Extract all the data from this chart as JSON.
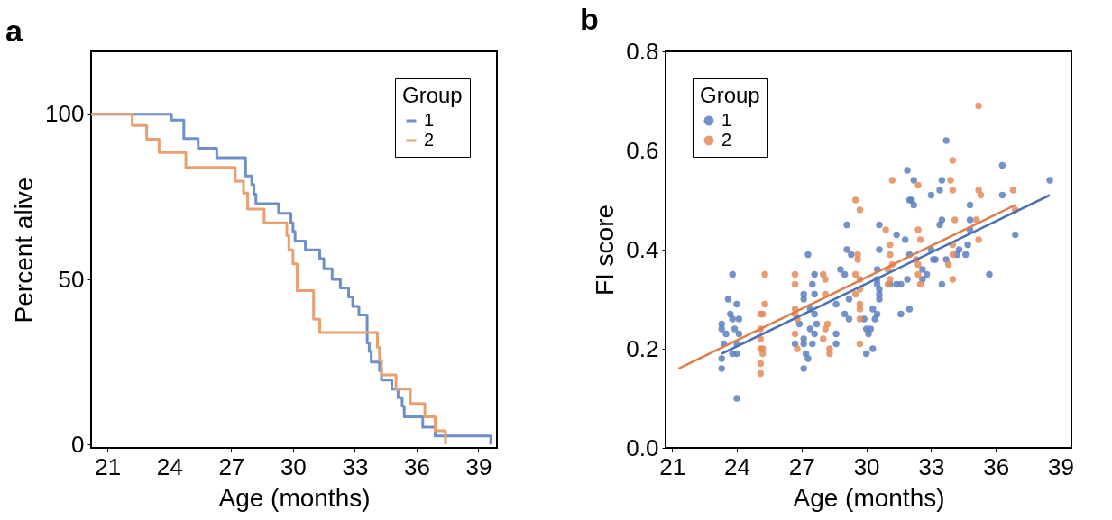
{
  "chart_data": [
    {
      "type": "step",
      "title": "a",
      "xlabel": "Age (months)",
      "ylabel": "Percent alive",
      "legend_title": "Group",
      "legend": "top right",
      "xlim": [
        20.2,
        39.9
      ],
      "xticks": [
        21,
        24,
        27,
        30,
        33,
        36,
        39
      ],
      "ylim": [
        -1,
        119
      ],
      "yticks": [
        0,
        50,
        100
      ],
      "series": [
        {
          "name": "1",
          "color": "#6e8fc9",
          "x": [
            20.2,
            24.1,
            24.7,
            25.4,
            26.3,
            27.7,
            28.0,
            28.1,
            28.2,
            29.3,
            29.9,
            30.0,
            30.1,
            30.6,
            31.3,
            31.5,
            31.9,
            32.3,
            32.7,
            32.9,
            33.2,
            33.6,
            33.7,
            33.8,
            34.2,
            34.3,
            34.8,
            35.1,
            35.3,
            35.4,
            36.3,
            36.9,
            39.6
          ],
          "values": [
            100,
            98.2,
            92.6,
            89.7,
            86.8,
            81.3,
            78.7,
            75.8,
            72.9,
            70.0,
            67.1,
            64.5,
            61.6,
            58.9,
            56.3,
            53.2,
            50.0,
            47.4,
            44.7,
            41.8,
            39.2,
            30.8,
            28.2,
            25.0,
            22.4,
            19.5,
            16.8,
            14.2,
            11.6,
            8.4,
            5.3,
            2.6,
            0
          ]
        },
        {
          "name": "2",
          "color": "#e9a070",
          "x": [
            20.2,
            22.2,
            22.9,
            23.5,
            24.8,
            27.2,
            27.6,
            27.8,
            28.6,
            29.7,
            29.8,
            30.0,
            30.2,
            31.0,
            31.3,
            34.1,
            34.2,
            34.3,
            35.0,
            35.7,
            36.4,
            36.9,
            37.4
          ],
          "values": [
            100,
            96.6,
            92.4,
            88.4,
            83.9,
            79.7,
            76.1,
            71.3,
            67.1,
            63.2,
            58.9,
            54.7,
            46.6,
            37.9,
            33.9,
            29.5,
            25.5,
            21.1,
            16.8,
            12.4,
            8.4,
            4.2,
            0
          ]
        }
      ]
    },
    {
      "type": "scatter",
      "title": "b",
      "xlabel": "Age (months)",
      "ylabel": "FI score",
      "legend_title": "Group",
      "legend": "top left",
      "xlim": [
        20.7,
        39.5
      ],
      "xticks": [
        21,
        24,
        27,
        30,
        33,
        36,
        39
      ],
      "ylim": [
        0,
        0.8
      ],
      "yticks": [
        {
          "value": 0,
          "label": "0.0"
        },
        0.2,
        0.4,
        0.6,
        0.8
      ],
      "series": [
        {
          "name": "1",
          "color": "#5b7fc0",
          "type": "scatter",
          "marker": "circle",
          "x": [
            23.8,
            23.6,
            24.0,
            23.7,
            23.3,
            23.3,
            23.5,
            23.8,
            24.1,
            23.9,
            24.1,
            23.4,
            24.0,
            23.8,
            24.0,
            23.3,
            23.3,
            24.0,
            27.3,
            27.6,
            27.5,
            27.1,
            27.1,
            27.6,
            27.4,
            27.6,
            26.9,
            27.7,
            27.4,
            27.6,
            26.7,
            27.1,
            27.1,
            27.5,
            27.2,
            27.3,
            27.1,
            28.6,
            28.8,
            29.1,
            29.1,
            29.3,
            29.0,
            29.2,
            29.0,
            29.2,
            28.6,
            28.6,
            33.7,
            31.9,
            32.2,
            33.4,
            33.5,
            33.0,
            32.0,
            32.1,
            32.2,
            30.6,
            33.4,
            33.5,
            34.8,
            34.8,
            36.3,
            36.3,
            38.5,
            36.9,
            31.4,
            31.8,
            30.6,
            32.0,
            33.0,
            33.2,
            33.1,
            33.7,
            34.3,
            34.2,
            34.6,
            34.7,
            34.8,
            32.6,
            32.8,
            32.6,
            31.9,
            31.4,
            31.6,
            31.1,
            30.5,
            30.5,
            30.5,
            30.6,
            30.6,
            30.6,
            30.3,
            30.5,
            30.4,
            29.9,
            30.0,
            30.2,
            30.1,
            32.0,
            31.6,
            33.5,
            35.7,
            30.3,
            30.0
          ],
          "values": [
            0.35,
            0.3,
            0.29,
            0.27,
            0.25,
            0.24,
            0.23,
            0.26,
            0.26,
            0.24,
            0.23,
            0.21,
            0.21,
            0.19,
            0.19,
            0.18,
            0.16,
            0.1,
            0.39,
            0.35,
            0.33,
            0.31,
            0.3,
            0.31,
            0.28,
            0.27,
            0.25,
            0.25,
            0.24,
            0.23,
            0.21,
            0.22,
            0.21,
            0.21,
            0.19,
            0.18,
            0.16,
            0.29,
            0.36,
            0.45,
            0.4,
            0.39,
            0.35,
            0.3,
            0.27,
            0.26,
            0.23,
            0.21,
            0.62,
            0.56,
            0.54,
            0.52,
            0.54,
            0.51,
            0.5,
            0.5,
            0.49,
            0.45,
            0.45,
            0.46,
            0.49,
            0.46,
            0.57,
            0.51,
            0.54,
            0.43,
            0.43,
            0.42,
            0.4,
            0.39,
            0.4,
            0.38,
            0.38,
            0.38,
            0.4,
            0.39,
            0.39,
            0.41,
            0.44,
            0.36,
            0.35,
            0.34,
            0.34,
            0.33,
            0.33,
            0.33,
            0.33,
            0.34,
            0.36,
            0.32,
            0.31,
            0.3,
            0.28,
            0.27,
            0.26,
            0.26,
            0.24,
            0.24,
            0.23,
            0.28,
            0.27,
            0.33,
            0.35,
            0.2,
            0.19
          ]
        },
        {
          "name": "2",
          "color": "#e58a58",
          "type": "scatter",
          "marker": "circle",
          "x": [
            25.3,
            25.3,
            25.1,
            25.2,
            25.1,
            25.1,
            25.2,
            25.1,
            25.2,
            25.1,
            25.1,
            26.7,
            26.7,
            26.7,
            26.7,
            26.8,
            26.7,
            26.8,
            28.0,
            28.1,
            28.1,
            28.2,
            28.1,
            28.0,
            28.3,
            28.3,
            29.5,
            29.7,
            29.6,
            29.6,
            29.5,
            29.7,
            29.5,
            29.7,
            29.7,
            29.7,
            29.7,
            29.7,
            35.2,
            34.0,
            31.2,
            32.4,
            33.9,
            34.0,
            35.2,
            35.3,
            36.8,
            36.9,
            34.1,
            35.1,
            30.9,
            32.4,
            31.1,
            32.5,
            35.2,
            34.0,
            34.0,
            31.1,
            31.2,
            31.0,
            32.3,
            32.4,
            32.4,
            33.8,
            34.0,
            31.1,
            31.0,
            32.5
          ],
          "values": [
            0.35,
            0.29,
            0.27,
            0.27,
            0.24,
            0.22,
            0.2,
            0.2,
            0.19,
            0.17,
            0.15,
            0.35,
            0.33,
            0.28,
            0.27,
            0.26,
            0.23,
            0.2,
            0.35,
            0.34,
            0.31,
            0.25,
            0.24,
            0.22,
            0.2,
            0.19,
            0.5,
            0.48,
            0.39,
            0.38,
            0.35,
            0.34,
            0.31,
            0.32,
            0.29,
            0.28,
            0.26,
            0.21,
            0.69,
            0.58,
            0.54,
            0.53,
            0.54,
            0.52,
            0.52,
            0.51,
            0.52,
            0.48,
            0.46,
            0.46,
            0.44,
            0.44,
            0.41,
            0.42,
            0.42,
            0.41,
            0.39,
            0.39,
            0.37,
            0.36,
            0.38,
            0.37,
            0.35,
            0.37,
            0.34,
            0.34,
            0.33,
            0.33
          ]
        },
        {
          "color": "#4a70b8",
          "type": "line",
          "x": [
            23.3,
            38.5
          ],
          "values": [
            0.19,
            0.51
          ]
        },
        {
          "color": "#e07b45",
          "type": "line",
          "x": [
            21.3,
            36.9
          ],
          "values": [
            0.16,
            0.49
          ]
        }
      ]
    }
  ]
}
